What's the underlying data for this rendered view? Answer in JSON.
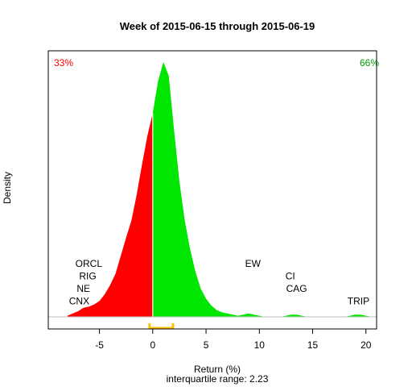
{
  "chart_data": {
    "type": "area",
    "title": "Week of 2015-06-15 through 2015-06-19",
    "xlabel": "Return (%)",
    "ylabel": "Density",
    "subtitle": "interquartile range: 2.23",
    "xlim": [
      -9.8,
      21.0
    ],
    "ylim": [
      0,
      0.235
    ],
    "x_ticks": [
      -5,
      0,
      5,
      10,
      15,
      20
    ],
    "x_tick_labels": [
      "-5",
      "0",
      "5",
      "10",
      "15",
      "20"
    ],
    "pct_negative_label": "33%",
    "pct_positive_label": "66%",
    "colors": {
      "negative": "#ff0000",
      "positive": "#00e600",
      "iqr_bracket": "#ffc000",
      "baseline": "#bebebe",
      "frame": "#000000"
    },
    "iqr": [
      -0.3,
      1.9
    ],
    "density": {
      "x": [
        -8.0,
        -7.5,
        -7.0,
        -6.5,
        -6.0,
        -5.5,
        -5.0,
        -4.5,
        -4.0,
        -3.5,
        -3.0,
        -2.5,
        -2.0,
        -1.5,
        -1.0,
        -0.5,
        0.0,
        0.5,
        1.0,
        1.5,
        2.0,
        2.5,
        3.0,
        3.5,
        4.0,
        4.5,
        5.0,
        5.5,
        6.0,
        6.5,
        7.0,
        7.5,
        8.0,
        8.5,
        9.0,
        9.5,
        10.0,
        10.5,
        11.0,
        11.5,
        12.0,
        12.5,
        13.0,
        13.5,
        14.0,
        14.5,
        15.0,
        16.0,
        17.0,
        18.0,
        18.5,
        19.0,
        19.5,
        20.0,
        20.5
      ],
      "y": [
        0.001,
        0.003,
        0.005,
        0.008,
        0.009,
        0.011,
        0.014,
        0.02,
        0.028,
        0.038,
        0.054,
        0.07,
        0.085,
        0.108,
        0.135,
        0.16,
        0.18,
        0.208,
        0.225,
        0.213,
        0.165,
        0.12,
        0.085,
        0.06,
        0.04,
        0.025,
        0.016,
        0.01,
        0.006,
        0.004,
        0.003,
        0.002,
        0.001,
        0.002,
        0.003,
        0.002,
        0.001,
        0.0,
        0.0,
        0.0,
        0.0,
        0.001,
        0.002,
        0.002,
        0.001,
        0.0,
        0.0,
        0.0,
        0.0,
        0.0,
        0.001,
        0.002,
        0.002,
        0.001,
        0.0
      ]
    },
    "annotations": [
      {
        "text": "ORCL",
        "x": -6.0,
        "y": 0.044
      },
      {
        "text": "RIG",
        "x": -6.1,
        "y": 0.033
      },
      {
        "text": "NE",
        "x": -6.5,
        "y": 0.022
      },
      {
        "text": "CNX",
        "x": -6.9,
        "y": 0.011
      },
      {
        "text": "EW",
        "x": 9.4,
        "y": 0.044
      },
      {
        "text": "CI",
        "x": 12.9,
        "y": 0.033
      },
      {
        "text": "CAG",
        "x": 13.5,
        "y": 0.022
      },
      {
        "text": "TRIP",
        "x": 19.3,
        "y": 0.011
      }
    ]
  }
}
